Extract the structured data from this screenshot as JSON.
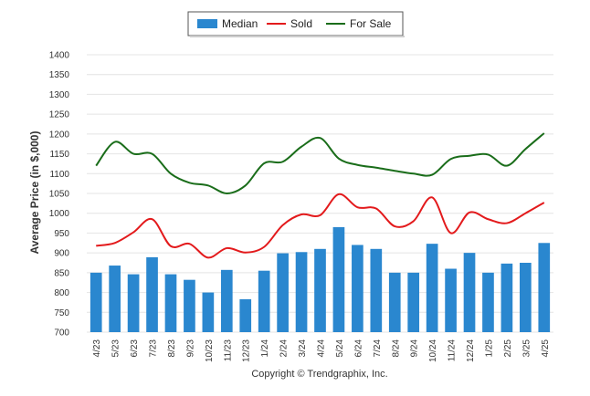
{
  "chart_data": {
    "type": "bar",
    "title": "",
    "xlabel": "",
    "ylabel": "Average Price (in $,000)",
    "ylim": [
      700,
      1400
    ],
    "yticks": [
      700,
      750,
      800,
      850,
      900,
      950,
      1000,
      1050,
      1100,
      1150,
      1200,
      1250,
      1300,
      1350,
      1400
    ],
    "grid": true,
    "legend_position": "top-center",
    "categories": [
      "4/23",
      "5/23",
      "6/23",
      "7/23",
      "8/23",
      "9/23",
      "10/23",
      "11/23",
      "12/23",
      "1/24",
      "2/24",
      "3/24",
      "4/24",
      "5/24",
      "6/24",
      "7/24",
      "8/24",
      "9/24",
      "10/24",
      "11/24",
      "12/24",
      "1/25",
      "2/25",
      "3/25",
      "4/25"
    ],
    "series": [
      {
        "name": "Median",
        "type": "bar",
        "color": "#2a87cf",
        "values": [
          850,
          868,
          846,
          889,
          846,
          832,
          800,
          857,
          783,
          855,
          899,
          902,
          910,
          965,
          920,
          910,
          850,
          850,
          923,
          860,
          900,
          850,
          873,
          875,
          925
        ]
      },
      {
        "name": "Sold",
        "type": "line",
        "color": "#e31a1c",
        "values": [
          918,
          925,
          952,
          985,
          917,
          923,
          888,
          912,
          901,
          915,
          970,
          997,
          995,
          1048,
          1015,
          1012,
          967,
          980,
          1040,
          950,
          1002,
          985,
          975,
          1000,
          1027
        ]
      },
      {
        "name": "For Sale",
        "type": "line",
        "color": "#1a6d1a",
        "values": [
          1120,
          1180,
          1150,
          1150,
          1100,
          1077,
          1070,
          1050,
          1070,
          1126,
          1130,
          1168,
          1190,
          1138,
          1122,
          1115,
          1107,
          1100,
          1097,
          1137,
          1145,
          1148,
          1120,
          1162,
          1202
        ]
      }
    ]
  },
  "copyright": "Copyright © Trendgraphix, Inc."
}
